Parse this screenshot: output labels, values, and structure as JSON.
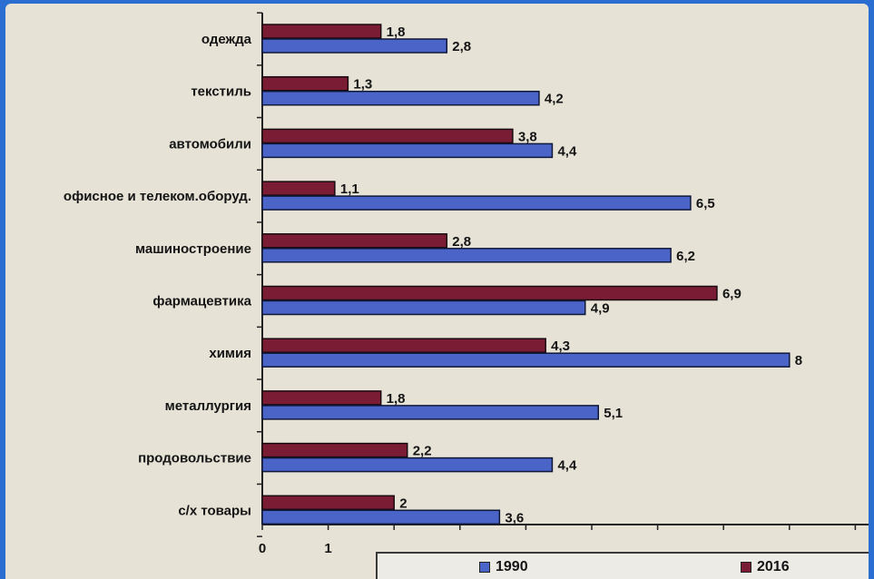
{
  "chart_data": {
    "type": "bar",
    "orientation": "horizontal",
    "categories": [
      "одежда",
      "текстиль",
      "автомобили",
      "офисное и телеком.оборуд.",
      "машиностроение",
      "фармацевтика",
      "химия",
      "металлургия",
      "продовольствие",
      "с/х товары"
    ],
    "series": [
      {
        "name": "1990",
        "values": [
          2.8,
          4.2,
          4.4,
          6.5,
          6.2,
          4.9,
          8,
          5.1,
          4.4,
          3.6
        ],
        "labels": [
          "2,8",
          "4,2",
          "4,4",
          "6,5",
          "6,2",
          "4,9",
          "8",
          "5,1",
          "4,4",
          "3,6"
        ],
        "color": "#4a64c8"
      },
      {
        "name": "2016",
        "values": [
          1.8,
          1.3,
          3.8,
          1.1,
          2.8,
          6.9,
          4.3,
          1.8,
          2.2,
          2
        ],
        "labels": [
          "1,8",
          "1,3",
          "3,8",
          "1,1",
          "2,8",
          "6,9",
          "4,3",
          "1,8",
          "2,2",
          "2"
        ],
        "color": "#7a1c34"
      }
    ],
    "x_ticks": [
      "0",
      "1"
    ],
    "xlim": [
      0,
      9
    ],
    "legend_position": "bottom"
  }
}
